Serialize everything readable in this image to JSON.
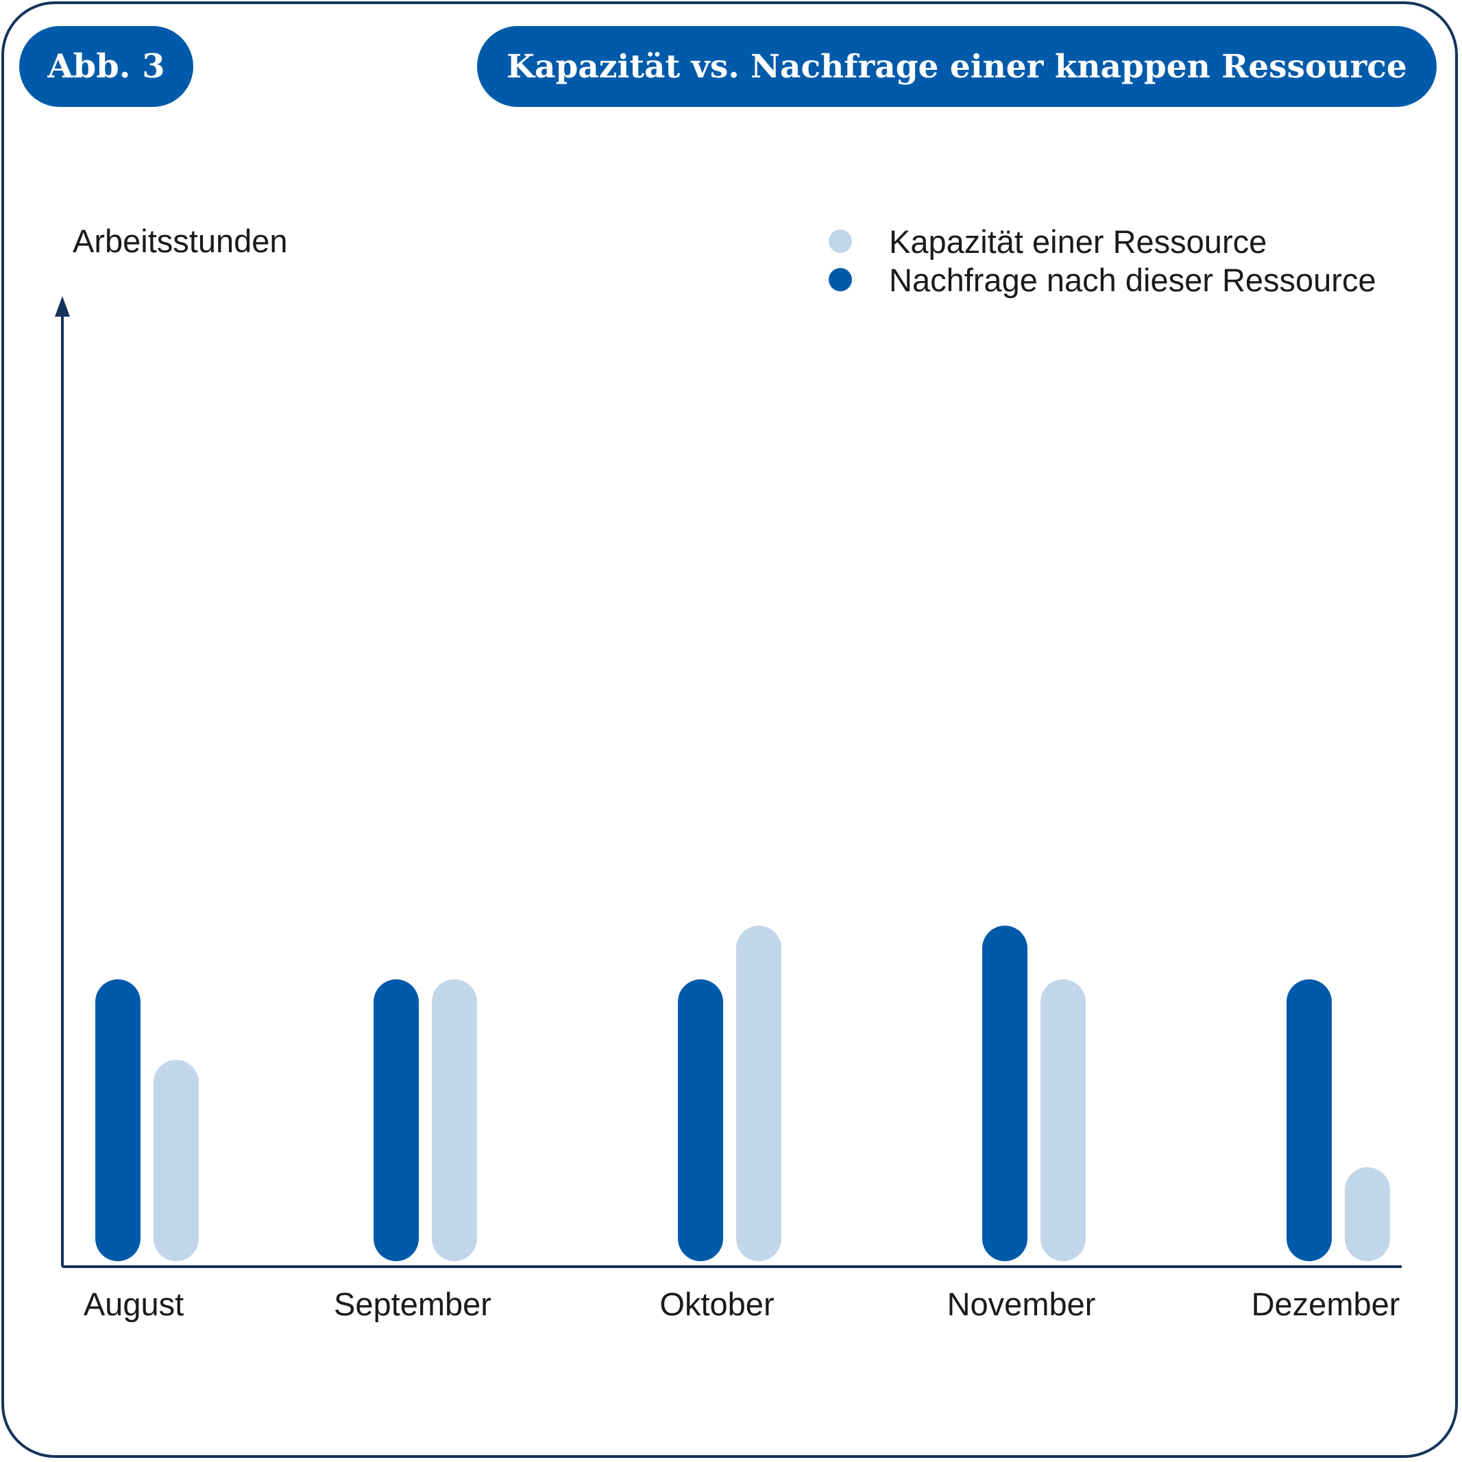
{
  "figure": {
    "badge": "Abb. 3",
    "title": "Kapazität vs. Nachfrage einer knappen Ressource"
  },
  "colors": {
    "demand": "#005aaa",
    "capacity": "#c1d6e9",
    "axis": "#14335b"
  },
  "chart_data": {
    "type": "bar",
    "ylabel": "Arbeitsstunden",
    "xlabel": "",
    "categories": [
      "August",
      "September",
      "Oktober",
      "November",
      "Dezember"
    ],
    "series": [
      {
        "name": "Nachfrage nach dieser Ressource",
        "values": [
          42,
          42,
          42,
          50,
          42
        ]
      },
      {
        "name": "Kapazität einer Ressource",
        "values": [
          30,
          42,
          50,
          42,
          14
        ]
      }
    ],
    "ylim": [
      0,
      143
    ],
    "grid": false,
    "legend_position": "top-right",
    "y_ticks_shown": false
  }
}
